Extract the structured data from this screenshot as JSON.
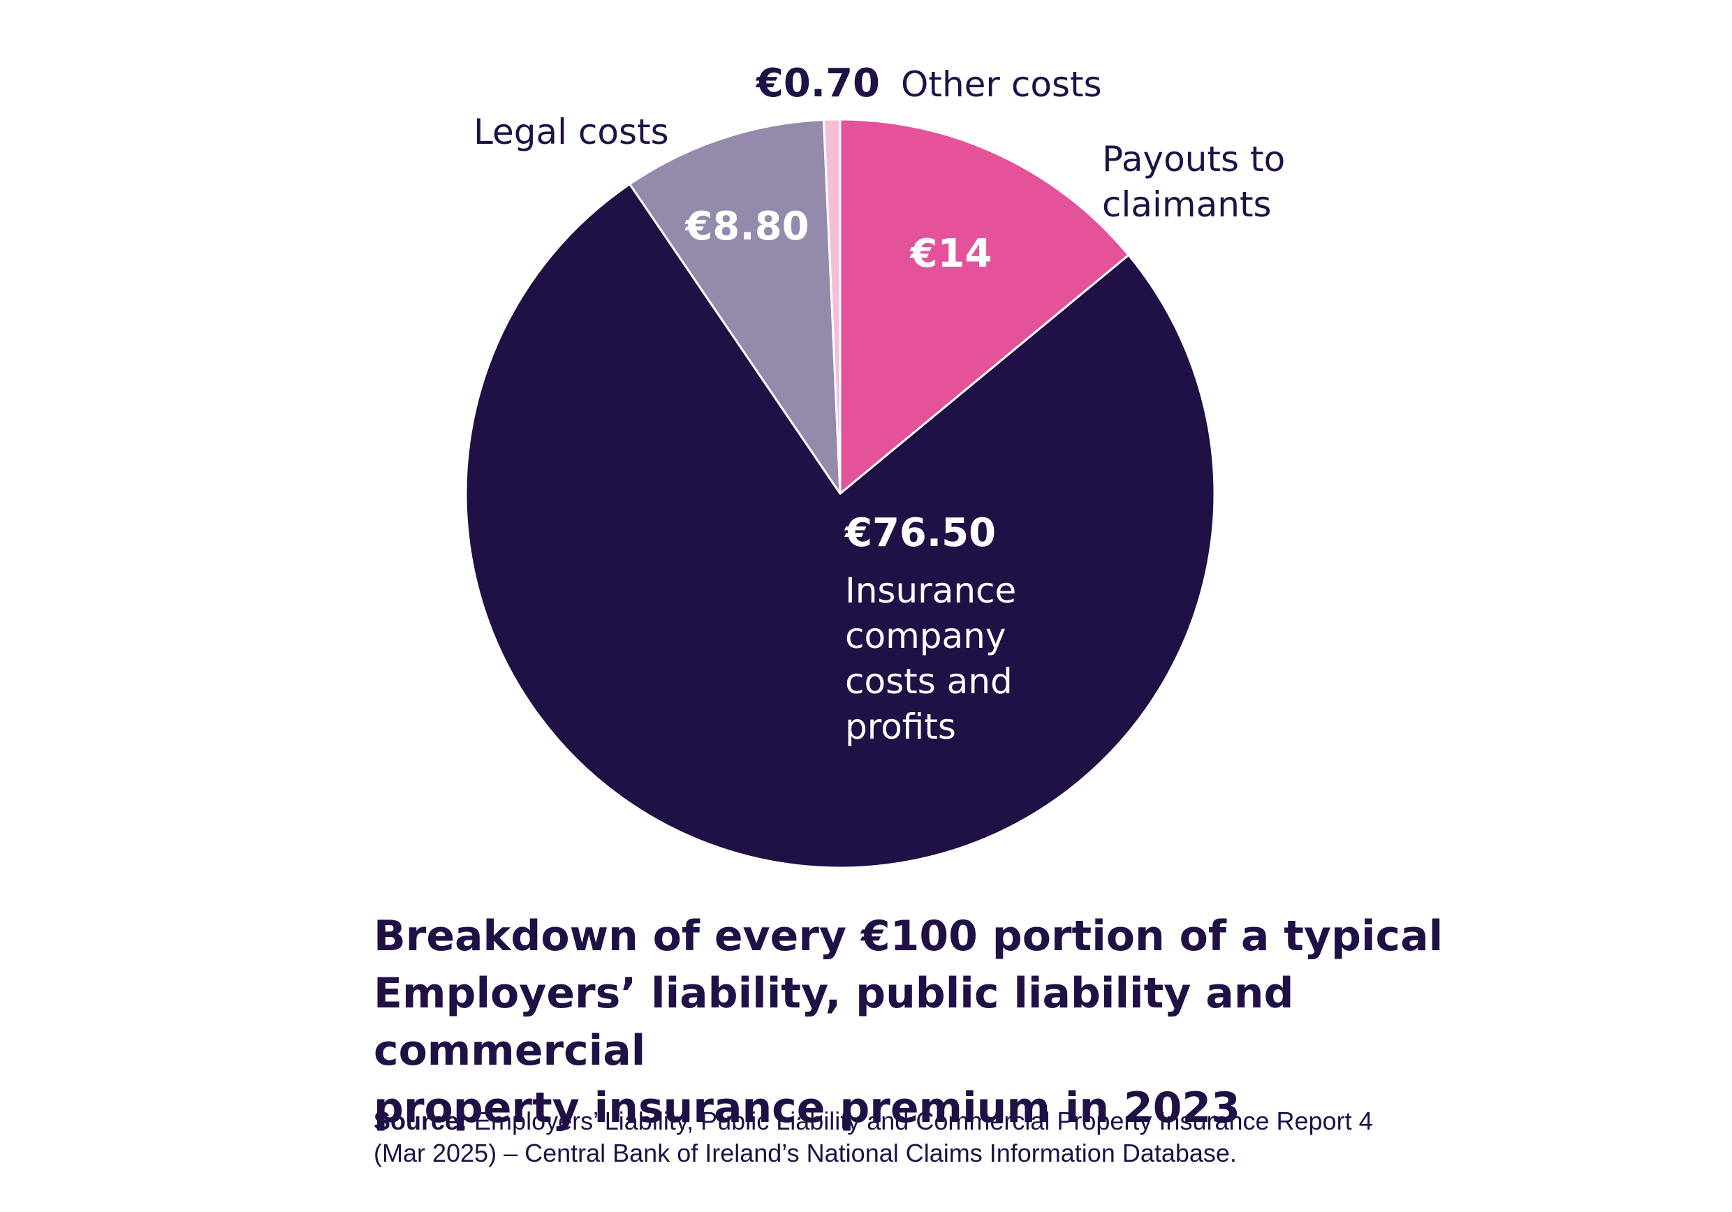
{
  "chart_data": {
    "type": "pie",
    "categories": [
      "Payouts to claimants",
      "Insurance company costs and profits",
      "Legal costs",
      "Other costs"
    ],
    "values": [
      14,
      76.5,
      8.8,
      0.7
    ],
    "value_labels": [
      "€14",
      "€76.50",
      "€8.80",
      "€0.70"
    ],
    "title": "Breakdown of every €100 portion of a typical Employers’ liability, public liability and commercial property insurance premium in 2023"
  },
  "labels": {
    "payouts": [
      "Payouts to",
      "claimants"
    ],
    "insurance": [
      "Insurance",
      "company",
      "costs and",
      "profits"
    ],
    "legal": "Legal costs",
    "other": "Other costs"
  },
  "title_lines": [
    "Breakdown of every €100 portion of a typical",
    "Employers’ liability, public liability and commercial",
    "property insurance premium in 2023"
  ],
  "source": {
    "prefix": "Source:",
    "text_line1": "Employers’ Liability, Public Liability and Commercial Property Insurance Report 4",
    "text_line2": "(Mar 2025) – Central Bank of Ireland’s National Claims Information Database."
  },
  "colors": {
    "payouts": "#e4529a",
    "insurance": "#1f1146",
    "legal": "#948aac",
    "other": "#f4bfd6",
    "text_dark": "#1f1146",
    "text_light": "#ffffff"
  }
}
